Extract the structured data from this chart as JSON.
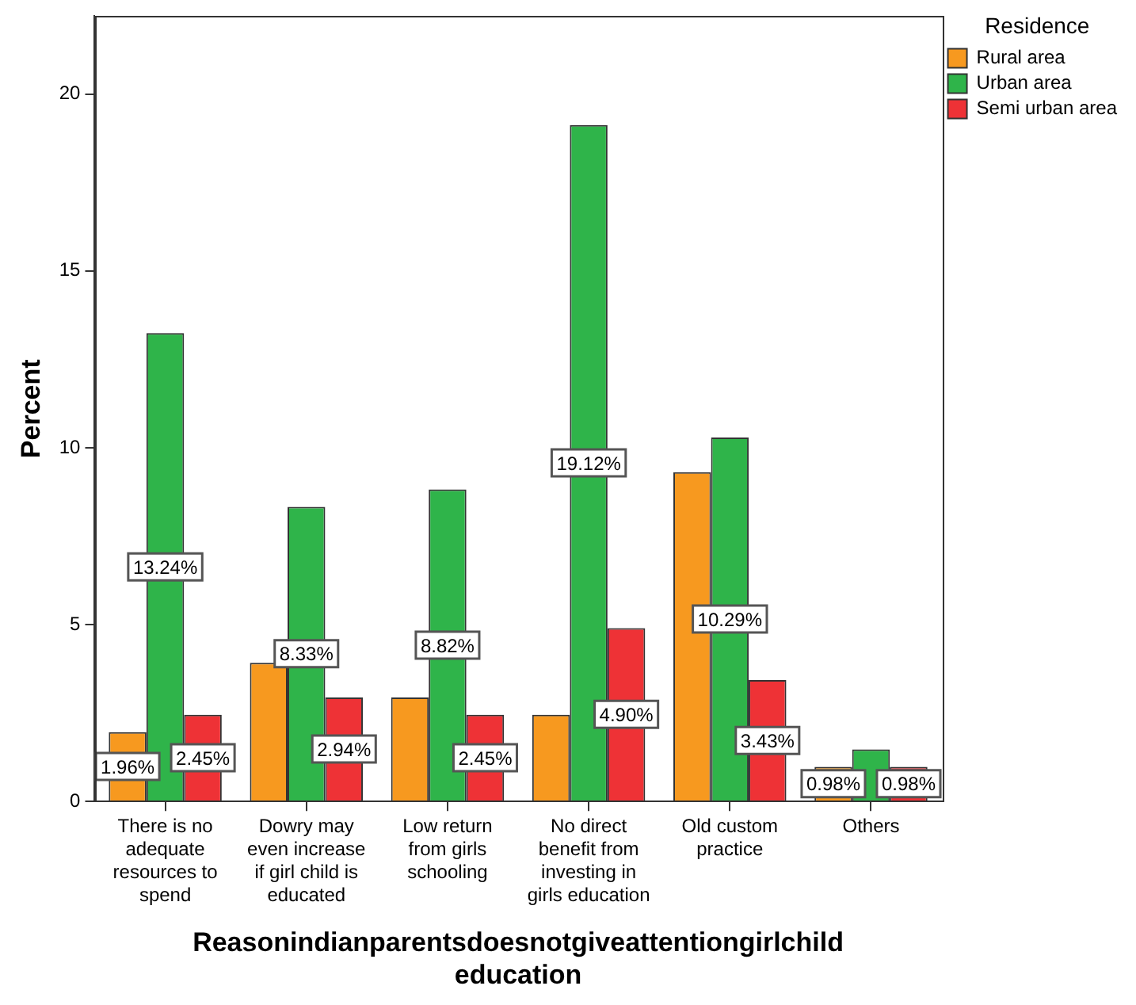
{
  "chart_data": {
    "type": "bar",
    "xlabel": "Reasonindianparentsdoesnotgiveattentiongirlchild education",
    "ylabel": "Percent",
    "legend_title": "Residence",
    "legend": "top right",
    "categories": [
      "There is no adequate resources to spend",
      "Dowry may even increase if girl child is educated",
      "Low return from girls schooling",
      "No direct benefit from investing in girls education",
      "Old custom practice",
      "Others"
    ],
    "series": [
      {
        "name": "Rural area",
        "color": "#f7991f",
        "values": [
          1.96,
          3.92,
          2.94,
          2.45,
          9.31,
          0.98
        ],
        "value_labels": [
          "1.96%",
          null,
          null,
          null,
          null,
          "0.98%"
        ]
      },
      {
        "name": "Urban area",
        "color": "#2fb44a",
        "values": [
          13.24,
          8.33,
          8.82,
          19.12,
          10.29,
          1.47
        ],
        "value_labels": [
          "13.24%",
          "8.33%",
          "8.82%",
          "19.12%",
          "10.29%",
          null
        ]
      },
      {
        "name": "Semi urban area",
        "color": "#ee3236",
        "values": [
          2.45,
          2.94,
          2.45,
          4.9,
          3.43,
          0.98
        ],
        "value_labels": [
          "2.45%",
          "2.94%",
          "2.45%",
          "4.90%",
          "3.43%",
          "0.98%"
        ]
      }
    ],
    "ylim": [
      0,
      22.2
    ],
    "yticks": [
      0,
      5,
      10,
      15,
      20
    ]
  }
}
